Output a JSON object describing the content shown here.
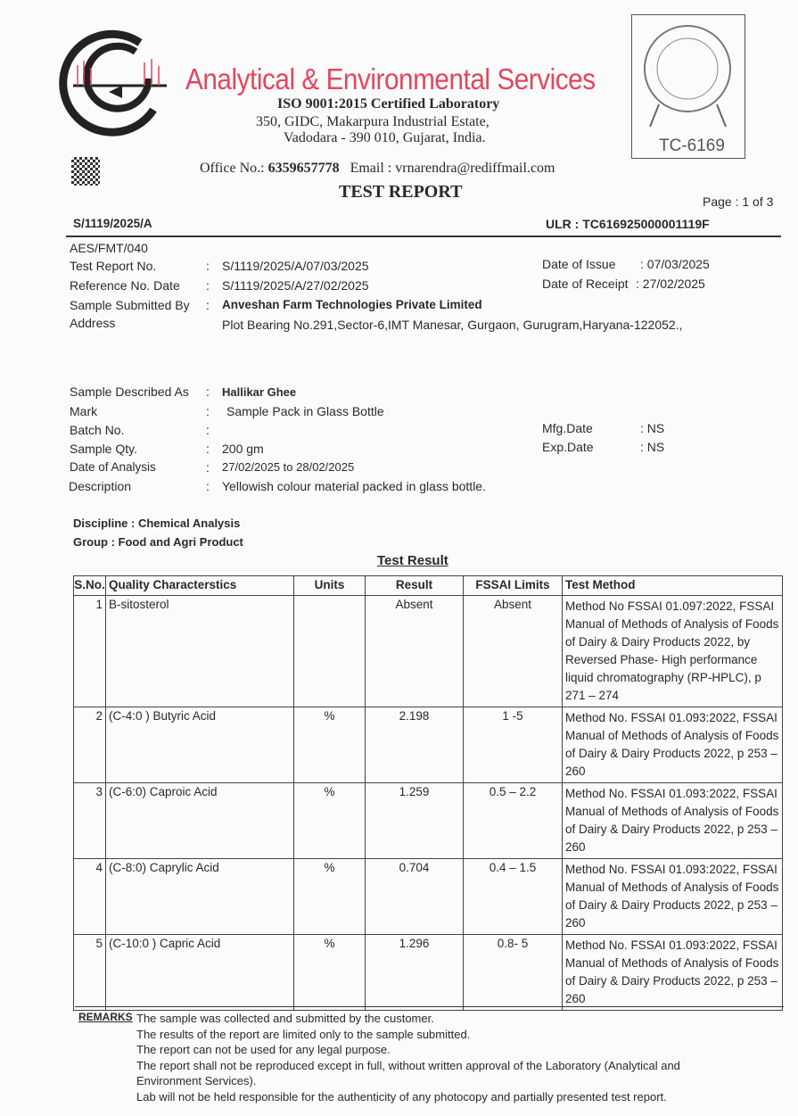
{
  "header": {
    "company": "Analytical & Environmental Services",
    "certification": "ISO 9001:2015 Certified Laboratory",
    "address_line1": "350,  GIDC, Makarpura  Industrial  Estate,",
    "address_line2": "Vadodara - 390 010,  Gujarat,  India.",
    "office_label": "Office No.:",
    "office_no": "6359657778",
    "email": "Email : vrnarendra@rediffmail.com",
    "title": "TEST REPORT",
    "stamp_code": "TC-6169",
    "page": "Page : 1 of 3",
    "ref": "S/1119/2025/A",
    "ulr": "ULR : TC616925000001119F",
    "brand_color": "#e2475f"
  },
  "details": {
    "form_no": "AES/FMT/040",
    "fields": [
      {
        "label": "Test Report No.",
        "value": "S/1119/2025/A/07/03/2025"
      },
      {
        "label": "Reference No. Date",
        "value": "S/1119/2025/A/27/02/2025"
      },
      {
        "label": "Sample Submitted By",
        "value": "Anveshan Farm Technologies Private Limited"
      },
      {
        "label": "Address",
        "value": "Plot Bearing No.291,Sector-6,IMT Manesar, Gurgaon, Gurugram,Haryana-122052.,"
      },
      {
        "label": "Sample Described As",
        "value": "Hallikar Ghee"
      },
      {
        "label": "Mark",
        "value": "Sample Pack in Glass Bottle"
      },
      {
        "label": "Batch No.",
        "value": ""
      },
      {
        "label": "Sample Qty.",
        "value": "200 gm"
      },
      {
        "label": "Date of Analysis",
        "value": "27/02/2025 to 28/02/2025"
      },
      {
        "label": "Description",
        "value": "Yellowish colour material packed in glass bottle."
      }
    ],
    "date_of_issue": {
      "label": "Date of Issue",
      "value": ": 07/03/2025"
    },
    "date_of_receipt": {
      "label": "Date of Receipt",
      "value": ": 27/02/2025"
    },
    "mfg": {
      "label": "Mfg.Date",
      "value": ": NS"
    },
    "exp": {
      "label": "Exp.Date",
      "value": ": NS"
    },
    "discipline": "Discipline : Chemical Analysis",
    "group": "Group : Food and Agri Product"
  },
  "table": {
    "title": "Test Result",
    "headers": [
      "S.No.",
      "Quality Characterstics",
      "Units",
      "Result",
      "FSSAI Limits",
      "Test Method"
    ],
    "rows": [
      {
        "sno": "1",
        "name": "B-sitosterol",
        "units": "",
        "result": "Absent",
        "limits": "Absent",
        "method": "Method No FSSAI 01.097:2022, FSSAI Manual of Methods of Analysis of Foods of Dairy & Dairy Products 2022, by Reversed Phase- High performance liquid chromatography (RP-HPLC), p 271 – 274"
      },
      {
        "sno": "2",
        "name": "(C-4:0 ) Butyric Acid",
        "units": "%",
        "result": "2.198",
        "limits": "1 -5",
        "method": "Method No. FSSAI 01.093:2022, FSSAI Manual of Methods of Analysis of Foods of Dairy & Dairy Products 2022, p 253 – 260"
      },
      {
        "sno": "3",
        "name": "(C-6:0) Caproic Acid",
        "units": "%",
        "result": "1.259",
        "limits": "0.5 – 2.2",
        "method": "Method No. FSSAI 01.093:2022, FSSAI Manual of Methods of Analysis of Foods of Dairy & Dairy Products 2022, p 253 – 260"
      },
      {
        "sno": "4",
        "name": "(C-8:0) Caprylic Acid",
        "units": "%",
        "result": "0.704",
        "limits": "0.4 – 1.5",
        "method": "Method No. FSSAI 01.093:2022, FSSAI Manual of Methods of Analysis of Foods of Dairy & Dairy Products 2022, p 253 – 260"
      },
      {
        "sno": "5",
        "name": "(C-10:0 ) Capric Acid",
        "units": "%",
        "result": "1.296",
        "limits": "0.8- 5",
        "method": "Method No. FSSAI 01.093:2022, FSSAI Manual of Methods of Analysis of Foods of Dairy & Dairy Products 2022, p 253 – 260"
      }
    ]
  },
  "remarks": {
    "label": "REMARKS",
    "lines": [
      "The sample was collected and submitted by the customer.",
      "The results of the report are limited only to the sample submitted.",
      "The report can not be used for any legal purpose.",
      "The report shall not be reproduced except in full, without written approval of the Laboratory (Analytical and",
      "Environment Services).",
      "Lab will not be held responsible for the authenticity of any photocopy and  partially presented test report."
    ]
  }
}
